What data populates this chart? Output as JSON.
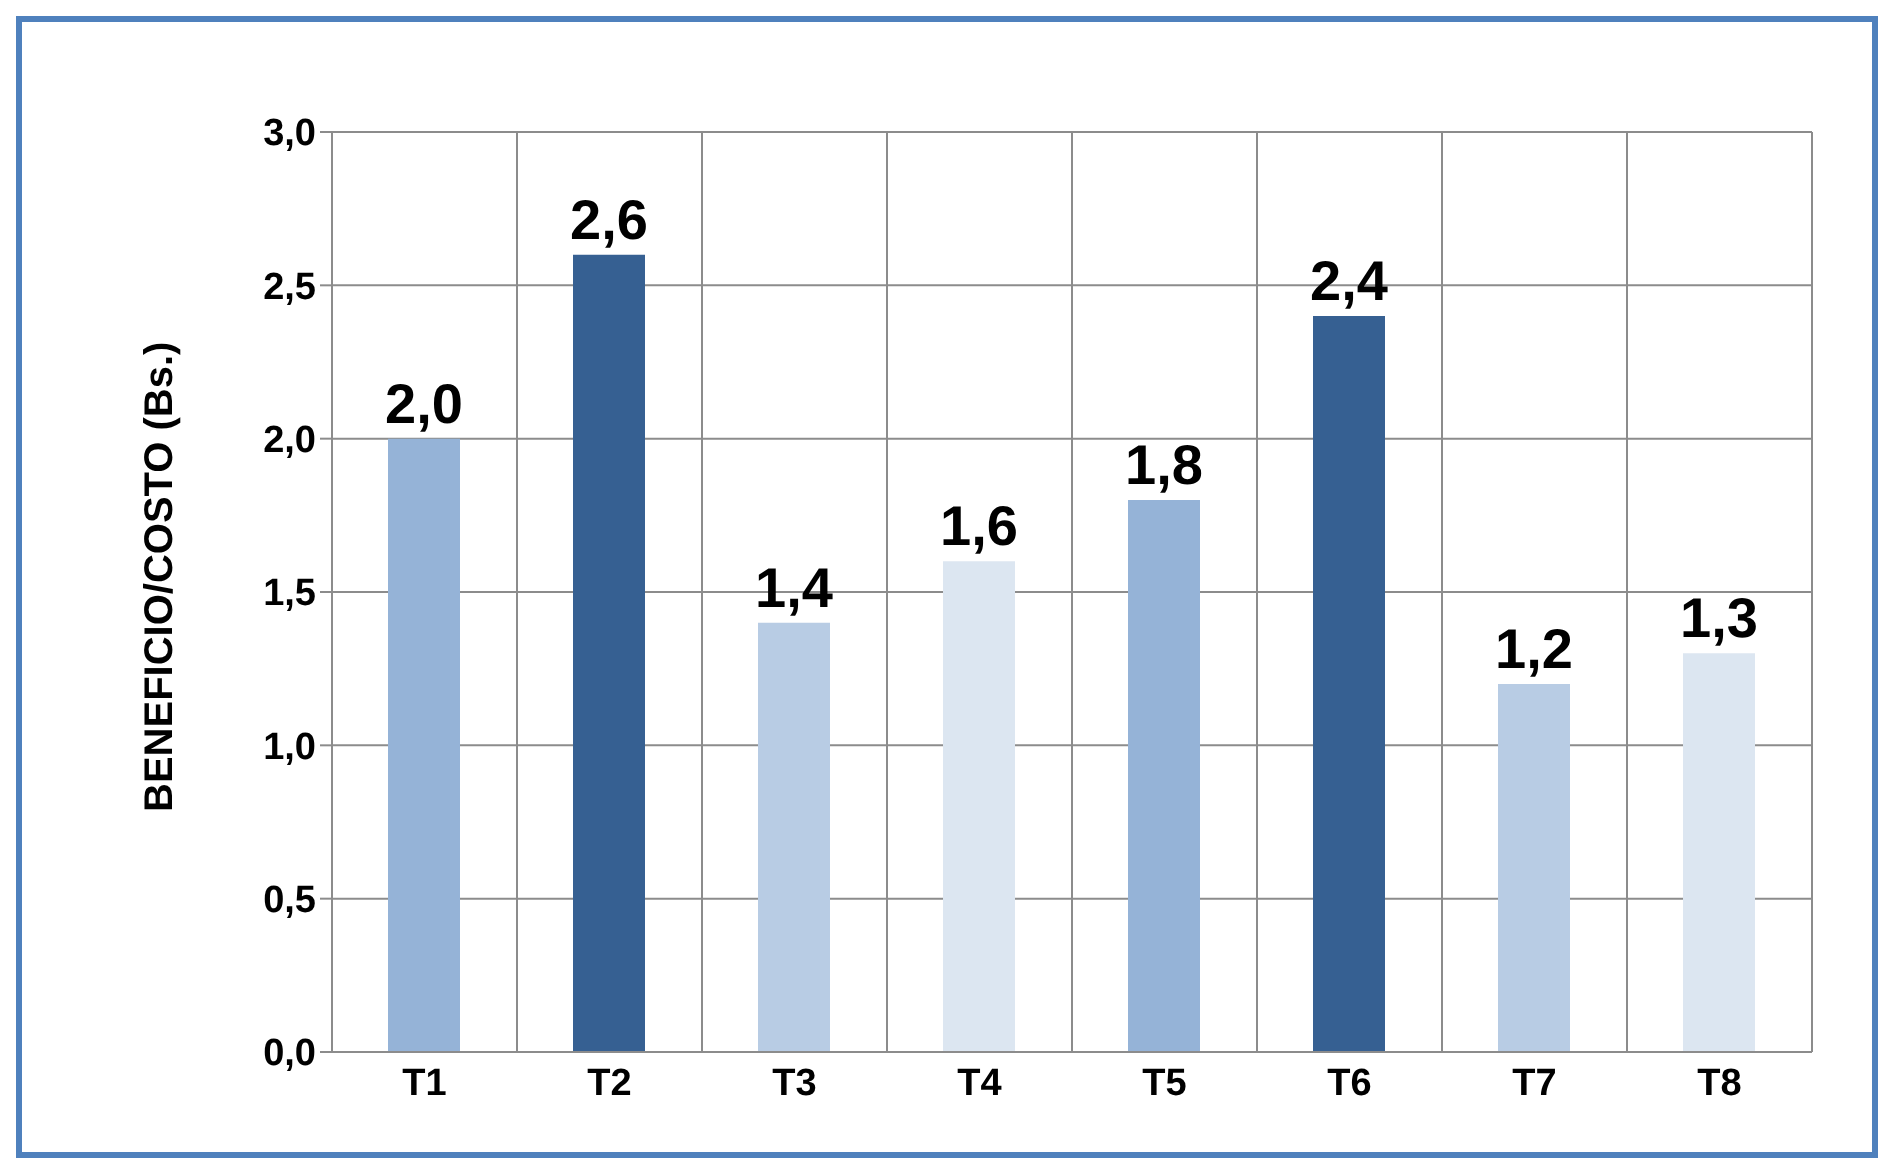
{
  "chart_data": {
    "type": "bar",
    "ylabel": "BENEFICIO/COSTO (Bs.)",
    "categories": [
      "T1",
      "T2",
      "T3",
      "T4",
      "T5",
      "T6",
      "T7",
      "T8"
    ],
    "values": [
      2.0,
      2.6,
      1.4,
      1.6,
      1.8,
      2.4,
      1.2,
      1.3
    ],
    "colors": [
      "#95b3d7",
      "#366092",
      "#b8cce4",
      "#dce6f1",
      "#95b3d7",
      "#366092",
      "#b8cce4",
      "#dce6f1"
    ],
    "value_labels": [
      "2,0",
      "2,6",
      "1,4",
      "1,6",
      "1,8",
      "2,4",
      "1,2",
      "1,3"
    ],
    "ylim": [
      0,
      3
    ],
    "yticks": [
      {
        "value": 0,
        "label": "0,0"
      },
      {
        "value": 0.5,
        "label": "0,5"
      },
      {
        "value": 1,
        "label": "1,0"
      },
      {
        "value": 1.5,
        "label": "1,5"
      },
      {
        "value": 2,
        "label": "2,0"
      },
      {
        "value": 2.5,
        "label": "2,5"
      },
      {
        "value": 3,
        "label": "3,0"
      }
    ],
    "grid": true,
    "legend": false
  }
}
